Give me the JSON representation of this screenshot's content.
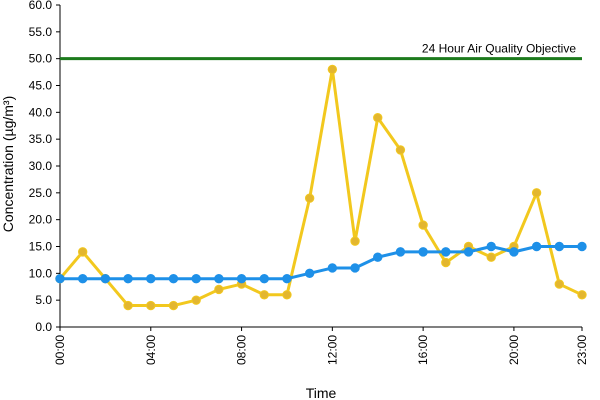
{
  "chart_data": {
    "type": "line",
    "xlabel": "Time",
    "ylabel": "Concentration (µg/m³)",
    "ylim": [
      0,
      60
    ],
    "yticks": [
      "0.0",
      "5.0",
      "10.0",
      "15.0",
      "20.0",
      "25.0",
      "30.0",
      "35.0",
      "40.0",
      "45.0",
      "50.0",
      "55.0",
      "60.0"
    ],
    "x": [
      0,
      1,
      2,
      3,
      4,
      5,
      6,
      7,
      8,
      9,
      10,
      11,
      12,
      13,
      14,
      15,
      16,
      17,
      18,
      19,
      20,
      21,
      22,
      23
    ],
    "xtick_hours": [
      0,
      4,
      8,
      12,
      16,
      20,
      23
    ],
    "xtick_labels": [
      "00:00",
      "04:00",
      "08:00",
      "12:00",
      "16:00",
      "20:00",
      "23:00"
    ],
    "series": [
      {
        "color": "#F2C81E",
        "marker_color": "#E3B62F",
        "values": [
          9,
          14,
          9,
          4,
          4,
          4,
          5,
          7,
          8,
          6,
          6,
          24,
          48,
          16,
          39,
          33,
          19,
          12,
          15,
          13,
          15,
          25,
          8,
          6
        ]
      },
      {
        "color": "#1E90E8",
        "marker_color": "#1E90E8",
        "values": [
          9,
          9,
          9,
          9,
          9,
          9,
          9,
          9,
          9,
          9,
          9,
          10,
          11,
          11,
          13,
          14,
          14,
          14,
          14,
          15,
          14,
          15,
          15,
          15
        ]
      }
    ],
    "reference_line": {
      "value": 50,
      "label": "24 Hour Air Quality Objective",
      "color": "#1C7A1C"
    },
    "grid": false,
    "legend": "none"
  }
}
